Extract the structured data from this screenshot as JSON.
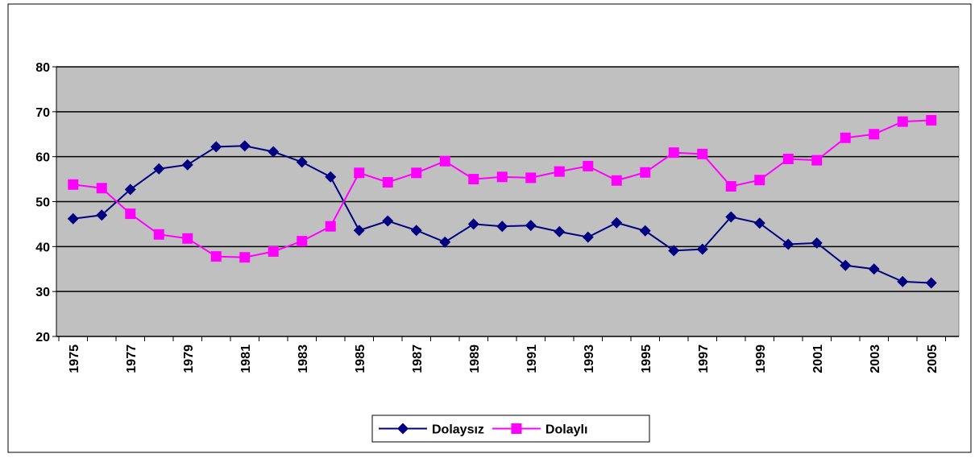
{
  "chart_data": {
    "type": "line",
    "categories": [
      "1975",
      null,
      "1977",
      null,
      "1979",
      null,
      "1981",
      null,
      "1983",
      null,
      "1985",
      null,
      "1987",
      null,
      "1989",
      null,
      "1991",
      null,
      "1993",
      null,
      "1995",
      null,
      "1997",
      null,
      "1999",
      null,
      "2001",
      null,
      "2003",
      null,
      "2005"
    ],
    "series": [
      {
        "name": "Dolaysız",
        "color": "#000080",
        "marker": "diamond",
        "values": [
          46.2,
          47,
          52.7,
          57.3,
          58.2,
          62.2,
          62.4,
          61.1,
          58.8,
          55.5,
          43.6,
          45.7,
          43.6,
          41,
          45,
          44.5,
          44.7,
          43.3,
          42.1,
          45.3,
          43.5,
          39.1,
          39.4,
          46.6,
          45.2,
          40.5,
          40.8,
          35.8,
          35,
          32.2,
          31.9
        ]
      },
      {
        "name": "Dolaylı",
        "color": "#ff00ff",
        "marker": "square",
        "values": [
          53.8,
          53,
          47.3,
          42.7,
          41.8,
          37.8,
          37.6,
          38.9,
          41.2,
          44.5,
          56.4,
          54.3,
          56.4,
          59,
          55,
          55.5,
          55.3,
          56.7,
          57.9,
          54.7,
          56.5,
          60.9,
          60.6,
          53.4,
          54.8,
          59.5,
          59.2,
          64.2,
          65,
          67.8,
          68.1
        ]
      }
    ],
    "ylim": [
      20,
      80
    ],
    "yticks": [
      20,
      30,
      40,
      50,
      60,
      70,
      80
    ],
    "grid": true,
    "plot_background": "#c0c0c0",
    "legend": "bottom"
  }
}
